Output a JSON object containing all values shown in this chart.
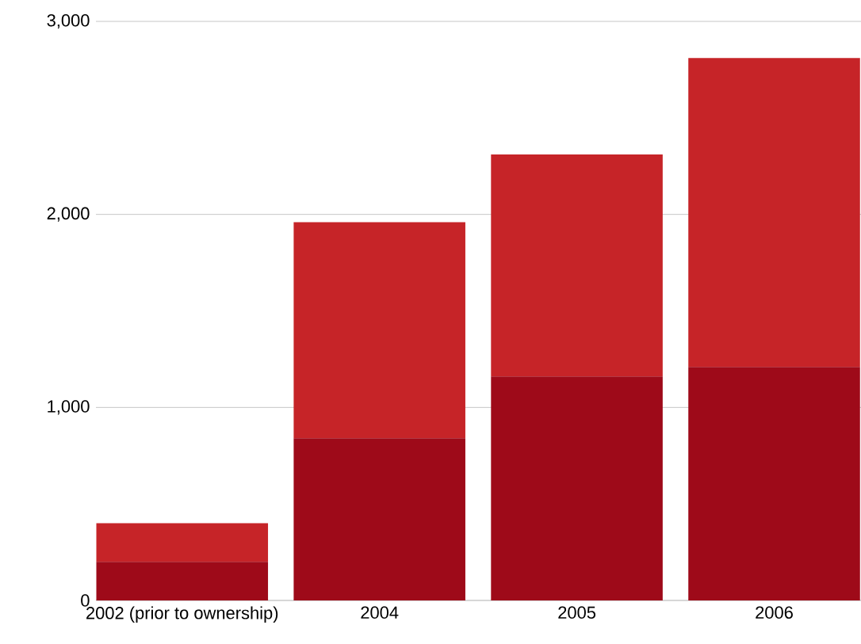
{
  "chart_data": {
    "type": "bar",
    "stacked": true,
    "categories": [
      "2002 (prior to ownership)",
      "2004",
      "2005",
      "2006"
    ],
    "series": [
      {
        "color": "#9e0a19",
        "values": [
          200,
          840,
          1160,
          1210
        ]
      },
      {
        "color": "#c62428",
        "values": [
          200,
          1120,
          1150,
          1600
        ]
      }
    ],
    "ylim": [
      0,
      3000
    ],
    "yticks": [
      {
        "value": 0,
        "label": "0"
      },
      {
        "value": 1000,
        "label": "1,000"
      },
      {
        "value": 2000,
        "label": "2,000"
      },
      {
        "value": 3000,
        "label": "3,000"
      }
    ],
    "grid": "y"
  }
}
